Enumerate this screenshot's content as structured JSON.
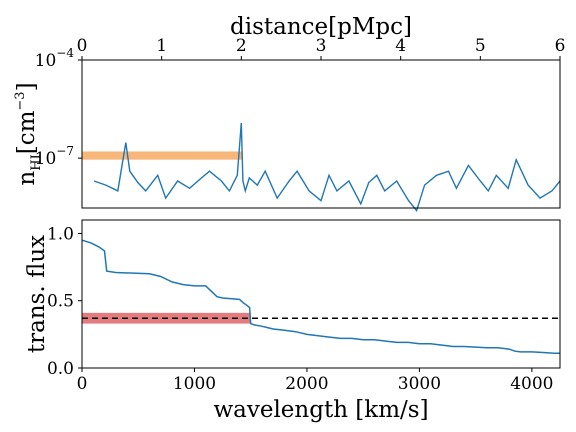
{
  "chart_data": [
    {
      "type": "line",
      "top_axis_label": "distance[pMpc]",
      "top_ticks": [
        "0",
        "1",
        "2",
        "3",
        "4",
        "5",
        "6"
      ],
      "top_xlim": [
        0,
        6
      ],
      "ylabel_main": "n",
      "ylabel_sub": "HI",
      "ylabel_unit": "[cm",
      "ylabel_exp": "−3",
      "ylabel_close": "]",
      "yscale": "log",
      "ylim": [
        3e-09,
        0.0001
      ],
      "y_ticks": [
        {
          "value": 0.0001,
          "base": "10",
          "exp": "−4"
        },
        {
          "value": 1e-07,
          "base": "10",
          "exp": "−7"
        }
      ],
      "series_color": "#1f77b4",
      "band": {
        "x": [
          0,
          2.02
        ],
        "y": [
          9e-08,
          1.6e-07
        ],
        "color": "#f7b77a"
      },
      "series": [
        {
          "x": [
            0.15,
            0.3,
            0.45,
            0.55,
            0.6,
            0.7,
            0.8,
            0.95,
            1.05,
            1.2,
            1.35,
            1.5,
            1.6,
            1.75,
            1.85,
            1.95,
            2.0,
            2.02,
            2.05,
            2.1,
            2.2,
            2.3,
            2.45,
            2.6,
            2.7,
            2.85,
            3.0,
            3.1,
            3.2,
            3.35,
            3.5,
            3.6,
            3.7,
            3.8,
            3.95,
            4.1,
            4.2,
            4.3,
            4.45,
            4.6,
            4.7,
            4.85,
            5.0,
            5.1,
            5.2,
            5.35,
            5.45,
            5.6,
            5.75,
            5.9,
            6.0
          ],
          "y": [
            2e-08,
            1.5e-08,
            1e-08,
            3e-07,
            4e-08,
            1.8e-08,
            1e-08,
            3e-08,
            6e-09,
            2e-08,
            1.2e-08,
            2.5e-08,
            4e-08,
            2e-08,
            1e-08,
            3e-08,
            1.2e-06,
            2e-08,
            1e-08,
            2.5e-08,
            1.5e-08,
            4e-08,
            6e-09,
            2e-08,
            4e-08,
            1e-08,
            5e-09,
            3e-08,
            1e-08,
            2e-08,
            4e-09,
            1.8e-08,
            3e-08,
            1e-08,
            2e-08,
            5e-09,
            2.5e-09,
            1.5e-08,
            3e-08,
            4e-08,
            1.2e-08,
            6e-08,
            2e-08,
            1e-08,
            3e-08,
            1.2e-08,
            9e-08,
            1.5e-08,
            6e-09,
            1e-08,
            2e-08
          ]
        }
      ]
    },
    {
      "type": "line",
      "xlabel": "wavelength [km/s]",
      "ylabel": "trans. flux",
      "xlim": [
        0,
        4250
      ],
      "ylim": [
        0,
        1.1
      ],
      "x_ticks": [
        "0",
        "1000",
        "2000",
        "3000",
        "4000"
      ],
      "y_ticks": [
        "0.0",
        "0.5",
        "1.0"
      ],
      "series_color": "#1f77b4",
      "hline": {
        "y": 0.37,
        "style": "dashed",
        "color": "#000000"
      },
      "band": {
        "x": [
          0,
          1500
        ],
        "y": [
          0.33,
          0.41
        ],
        "color": "#e37c7e"
      },
      "series": [
        {
          "x": [
            0,
            80,
            150,
            200,
            220,
            300,
            600,
            700,
            800,
            900,
            1000,
            1100,
            1200,
            1250,
            1400,
            1440,
            1460,
            1490,
            1500,
            1530,
            1600,
            1650,
            1700,
            1800,
            1900,
            2000,
            2100,
            2200,
            2300,
            2400,
            2500,
            2600,
            2700,
            2800,
            2900,
            3000,
            3100,
            3200,
            3300,
            3400,
            3500,
            3600,
            3700,
            3800,
            3850,
            3900,
            4000,
            4100,
            4200,
            4250
          ],
          "y": [
            0.95,
            0.93,
            0.9,
            0.87,
            0.72,
            0.71,
            0.7,
            0.68,
            0.64,
            0.62,
            0.61,
            0.61,
            0.53,
            0.52,
            0.51,
            0.48,
            0.47,
            0.45,
            0.33,
            0.32,
            0.31,
            0.3,
            0.29,
            0.28,
            0.27,
            0.25,
            0.24,
            0.23,
            0.22,
            0.22,
            0.21,
            0.21,
            0.2,
            0.19,
            0.19,
            0.18,
            0.18,
            0.17,
            0.16,
            0.16,
            0.155,
            0.15,
            0.15,
            0.14,
            0.125,
            0.12,
            0.12,
            0.115,
            0.11,
            0.11
          ]
        }
      ]
    }
  ]
}
